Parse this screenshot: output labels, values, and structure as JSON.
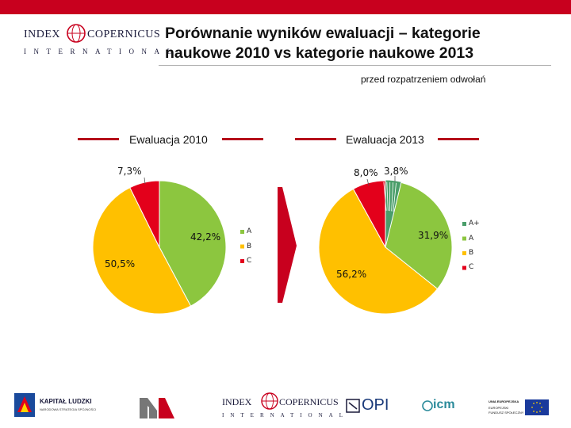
{
  "header": {
    "logo_primary": "INDEX",
    "logo_secondary": "COPERNICUS",
    "logo_subtitle": "INTERNATIONAL",
    "title_line1": "Porównanie wyników ewaluacji – kategorie",
    "title_line2": "naukowe 2010 vs kategorie naukowe 2013",
    "subtitle": "przed rozpatrzeniem odwołań"
  },
  "chart_data": [
    {
      "type": "pie",
      "title": "Ewaluacja 2010",
      "categories": [
        "A",
        "B",
        "C"
      ],
      "values": [
        42.2,
        50.5,
        7.3
      ],
      "labels": [
        "42,2%",
        "50,5%",
        "7,3%"
      ],
      "colors": [
        "#8cc63f",
        "#ffc000",
        "#e3001b"
      ],
      "legend_position": "right"
    },
    {
      "type": "pie",
      "title": "Ewaluacja 2013",
      "categories": [
        "A+",
        "A",
        "B",
        "C"
      ],
      "values": [
        3.8,
        31.9,
        56.2,
        8.0
      ],
      "labels": [
        "3,8%",
        "31,9%",
        "56,2%",
        "8,0%"
      ],
      "colors": [
        "#4a9e6a",
        "#8cc63f",
        "#ffc000",
        "#e3001b"
      ],
      "legend_position": "right"
    }
  ],
  "footer": {
    "logo1_title": "KAPITAŁ LUDZKI",
    "logo1_sub": "NARODOWA STRATEGIA SPÓJNOŚCI",
    "logo3_primary": "INDEX",
    "logo3_secondary": "COPERNICUS",
    "logo3_sub": "INTERNATIONAL",
    "logo4": "OPI",
    "logo5": "icm",
    "logo6_line1": "UNIA EUROPEJSKA",
    "logo6_line2": "EUROPEJSKI",
    "logo6_line3": "FUNDUSZ SPOŁECZNY"
  }
}
